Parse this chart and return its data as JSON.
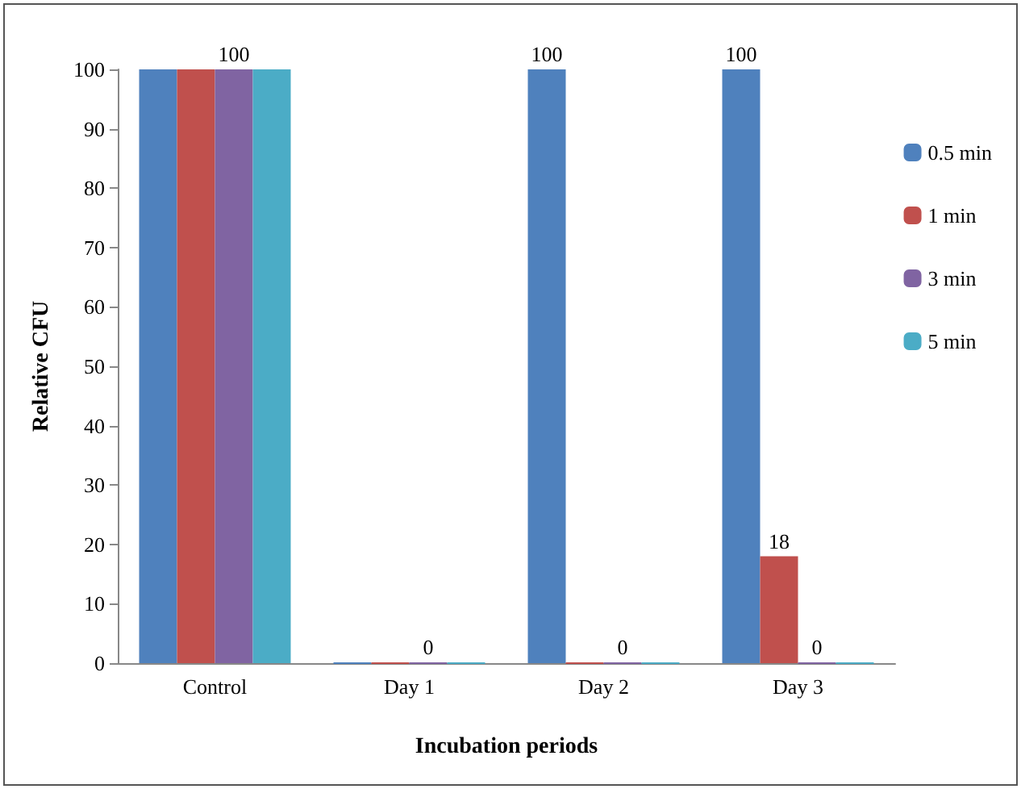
{
  "chart_data": {
    "type": "bar",
    "xlabel": "Incubation periods",
    "ylabel": "Relative CFU",
    "categories": [
      "Control",
      "Day 1",
      "Day 2",
      "Day 3"
    ],
    "series": [
      {
        "name": "0.5 min",
        "color": "#4f81bd",
        "values": [
          100,
          0,
          100,
          100
        ],
        "value_labels": [
          null,
          null,
          "100",
          "100"
        ]
      },
      {
        "name": "1 min",
        "color": "#c0504d",
        "values": [
          100,
          0,
          0,
          18
        ],
        "value_labels": [
          null,
          null,
          null,
          "18"
        ]
      },
      {
        "name": "3 min",
        "color": "#8064a2",
        "values": [
          100,
          0,
          0,
          0
        ],
        "value_labels": [
          "100",
          "0",
          "0",
          "0"
        ]
      },
      {
        "name": "5 min",
        "color": "#4bacc6",
        "values": [
          100,
          0,
          0,
          0
        ],
        "value_labels": [
          null,
          null,
          null,
          null
        ]
      }
    ],
    "ylim": [
      0,
      100
    ],
    "yticks": [
      0,
      10,
      20,
      30,
      40,
      50,
      60,
      70,
      80,
      90,
      100
    ],
    "grid": false,
    "legend": "right"
  }
}
